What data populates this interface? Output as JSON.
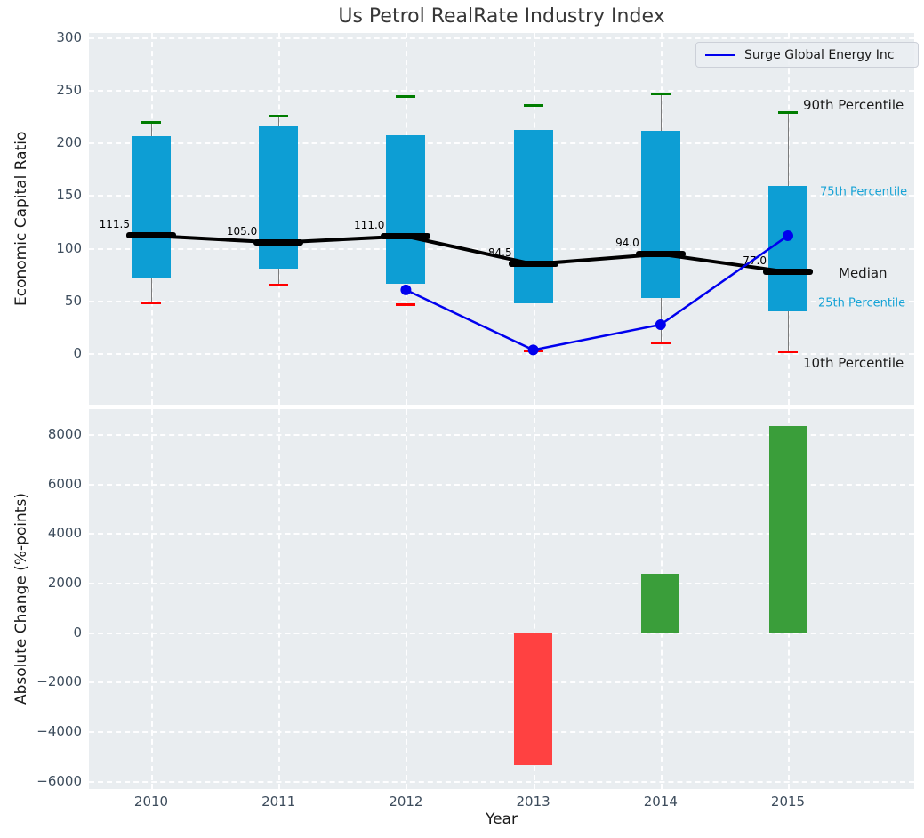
{
  "title": "Us Petrol RealRate Industry Index",
  "legend": {
    "label": "Surge Global Energy Inc"
  },
  "colors": {
    "axes_bg": "#e9edf0",
    "grid": "#ffffff",
    "box_fill": "#0d9ed4",
    "median": "#000000",
    "whisker": "#7b7b7b",
    "cap_top": "#007d00",
    "cap_bottom": "#ff0000",
    "company_line": "#0000ee",
    "bar_positive": "#3a9e3a",
    "bar_negative": "#ff4141",
    "tick_label": "#3d4c5c",
    "annotation_cyan": "#17a3d6"
  },
  "top_panel": {
    "ylabel": "Economic Capital Ratio",
    "yticks": [
      300,
      250,
      200,
      150,
      100,
      50,
      0
    ],
    "annotations": [
      {
        "label": "90th Percentile",
        "value": 236,
        "style": "large",
        "x": 803
      },
      {
        "label": "75th Percentile",
        "value": 153,
        "style": "small",
        "x": 822
      },
      {
        "label": "Median",
        "value": 76,
        "style": "large",
        "x": 843
      },
      {
        "label": "25th Percentile",
        "value": 47,
        "style": "small",
        "x": 820
      },
      {
        "label": "10th Percentile",
        "value": -9,
        "style": "large",
        "x": 803
      }
    ]
  },
  "bottom_panel": {
    "ylabel": "Absolute Change (%-points)",
    "xlabel": "Year",
    "yticks": [
      8000,
      6000,
      4000,
      2000,
      0,
      -2000,
      -4000,
      -6000
    ]
  },
  "chart_data": [
    {
      "type": "boxplot",
      "title": "Us Petrol RealRate Industry Index",
      "xlabel": "Year",
      "ylabel": "Economic Capital Ratio",
      "x": [
        2010,
        2011,
        2012,
        2013,
        2014,
        2015
      ],
      "ylim": [
        -49,
        304
      ],
      "grid": true,
      "legend_position": "upper right",
      "series": [
        {
          "name": "90th Percentile",
          "values": [
            219,
            225,
            244,
            235,
            246,
            228
          ]
        },
        {
          "name": "75th Percentile",
          "values": [
            206,
            215,
            207,
            212,
            211,
            159
          ]
        },
        {
          "name": "Median",
          "values": [
            111.5,
            105.0,
            111.0,
            84.5,
            94.0,
            77.0
          ]
        },
        {
          "name": "25th Percentile",
          "values": [
            72,
            80,
            66,
            47,
            52,
            40
          ]
        },
        {
          "name": "10th Percentile",
          "values": [
            48,
            65,
            46,
            2,
            10,
            1
          ]
        },
        {
          "name": "Surge Global Energy Inc",
          "values": [
            null,
            null,
            60,
            3,
            27,
            111.5
          ]
        }
      ],
      "median_labels": [
        "111.5",
        "105.0",
        "111.0",
        "84.5",
        "94.0",
        "77.0"
      ]
    },
    {
      "type": "bar",
      "xlabel": "Year",
      "ylabel": "Absolute Change (%-points)",
      "x": [
        2010,
        2011,
        2012,
        2013,
        2014,
        2015
      ],
      "values": [
        null,
        null,
        null,
        -5350,
        2360,
        8320
      ],
      "ylim": [
        -6330,
        9000
      ],
      "grid": true
    }
  ]
}
